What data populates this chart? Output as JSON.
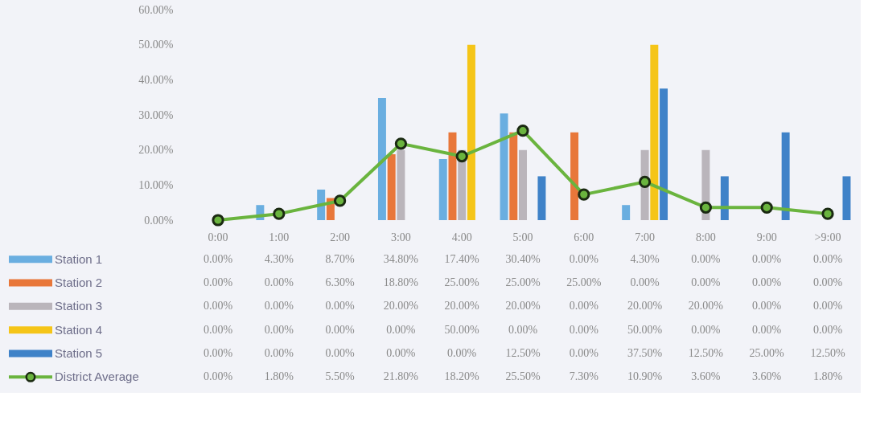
{
  "chart_data": {
    "type": "bar",
    "categories": [
      "0:00",
      "1:00",
      "2:00",
      "3:00",
      "4:00",
      "5:00",
      "6:00",
      "7:00",
      "8:00",
      "9:00",
      ">9:00"
    ],
    "series": [
      {
        "name": "Station 1",
        "color": "#6aaee0",
        "values": [
          0,
          4.3,
          8.7,
          34.8,
          17.4,
          30.4,
          0,
          4.3,
          0,
          0,
          0
        ],
        "value_labels": [
          "0.00%",
          "4.30%",
          "8.70%",
          "34.80%",
          "17.40%",
          "30.40%",
          "0.00%",
          "4.30%",
          "0.00%",
          "0.00%",
          "0.00%"
        ]
      },
      {
        "name": "Station 2",
        "color": "#e8773a",
        "values": [
          0,
          0,
          6.3,
          18.8,
          25,
          25,
          25,
          0,
          0,
          0,
          0
        ],
        "value_labels": [
          "0.00%",
          "0.00%",
          "6.30%",
          "18.80%",
          "25.00%",
          "25.00%",
          "25.00%",
          "0.00%",
          "0.00%",
          "0.00%",
          "0.00%"
        ]
      },
      {
        "name": "Station 3",
        "color": "#bab5bb",
        "values": [
          0,
          0,
          0,
          20,
          20,
          20,
          0,
          20,
          20,
          0,
          0
        ],
        "value_labels": [
          "0.00%",
          "0.00%",
          "0.00%",
          "20.00%",
          "20.00%",
          "20.00%",
          "0.00%",
          "20.00%",
          "20.00%",
          "0.00%",
          "0.00%"
        ]
      },
      {
        "name": "Station 4",
        "color": "#f5c518",
        "values": [
          0,
          0,
          0,
          0,
          50,
          0,
          0,
          50,
          0,
          0,
          0
        ],
        "value_labels": [
          "0.00%",
          "0.00%",
          "0.00%",
          "0.00%",
          "50.00%",
          "0.00%",
          "0.00%",
          "50.00%",
          "0.00%",
          "0.00%",
          "0.00%"
        ]
      },
      {
        "name": "Station 5",
        "color": "#3f82c8",
        "values": [
          0,
          0,
          0,
          0,
          0,
          12.5,
          0,
          37.5,
          12.5,
          25,
          12.5
        ],
        "value_labels": [
          "0.00%",
          "0.00%",
          "0.00%",
          "0.00%",
          "0.00%",
          "12.50%",
          "0.00%",
          "37.50%",
          "12.50%",
          "25.00%",
          "12.50%"
        ]
      },
      {
        "name": "District Average",
        "type": "line",
        "color": "#6ab43e",
        "marker": "circle",
        "line_style": "solid",
        "values": [
          0,
          1.8,
          5.5,
          21.8,
          18.2,
          25.5,
          7.3,
          10.9,
          3.6,
          3.6,
          1.8
        ],
        "value_labels": [
          "0.00%",
          "1.80%",
          "5.50%",
          "21.80%",
          "18.20%",
          "25.50%",
          "7.30%",
          "10.90%",
          "3.60%",
          "3.60%",
          "1.80%"
        ]
      }
    ],
    "ylim": [
      0,
      60
    ],
    "yticks": [
      {
        "value": 0,
        "label": "0.00%"
      },
      {
        "value": 10,
        "label": "10.00%"
      },
      {
        "value": 20,
        "label": "20.00%"
      },
      {
        "value": 30,
        "label": "30.00%"
      },
      {
        "value": 40,
        "label": "40.00%"
      },
      {
        "value": 50,
        "label": "50.00%"
      },
      {
        "value": 60,
        "label": "60.00%"
      }
    ],
    "grid": false,
    "legend": "bottom"
  }
}
